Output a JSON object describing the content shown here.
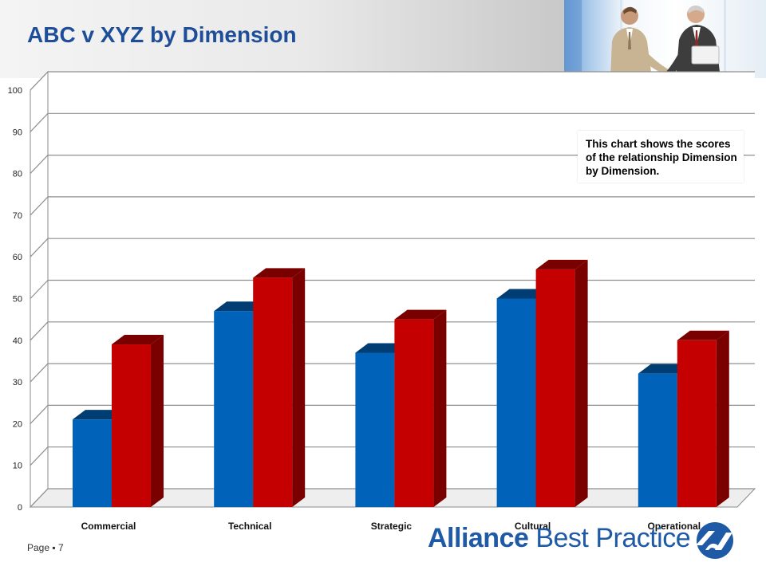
{
  "slide": {
    "title": "ABC v XYZ by Dimension",
    "note": "This chart shows the scores of the relationship Dimension by Dimension.",
    "page_label": "Page ▪ 7",
    "logo": {
      "word1": "Alliance",
      "word2": "Best Practice"
    }
  },
  "colors": {
    "title": "#1f4e99",
    "series_blue": "#0062b8",
    "series_red": "#c40000",
    "logo": "#1f5aa6"
  },
  "chart_data": {
    "type": "bar",
    "title": "",
    "xlabel": "",
    "ylabel": "",
    "categories": [
      "Commercial",
      "Technical",
      "Strategic",
      "Cultural",
      "Operational"
    ],
    "series": [
      {
        "color": "#0062b8",
        "values": [
          21,
          47,
          37,
          50,
          32
        ]
      },
      {
        "color": "#c40000",
        "values": [
          39,
          55,
          45,
          57,
          40
        ]
      }
    ],
    "ylim": [
      0,
      100
    ],
    "yticks": [
      0,
      10,
      20,
      30,
      40,
      50,
      60,
      70,
      80,
      90,
      100
    ],
    "grid": true,
    "legend": "none"
  }
}
